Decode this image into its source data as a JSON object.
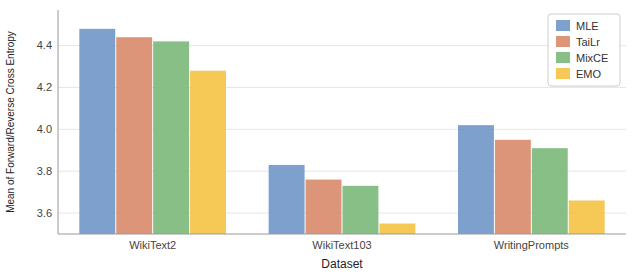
{
  "chart_data": {
    "type": "bar",
    "xlabel": "Dataset",
    "ylabel": "Mean of Forward/Reverse Cross Entropy",
    "categories": [
      "WikiText2",
      "WikiText103",
      "WritingPrompts"
    ],
    "series": [
      {
        "name": "MLE",
        "color": "#7096c8",
        "values": [
          4.48,
          3.83,
          4.02
        ]
      },
      {
        "name": "TaiLr",
        "color": "#d9896a",
        "values": [
          4.44,
          3.76,
          3.95
        ]
      },
      {
        "name": "MixCE",
        "color": "#7ab87a",
        "values": [
          4.42,
          3.73,
          3.91
        ]
      },
      {
        "name": "EMO",
        "color": "#f5c242",
        "values": [
          4.28,
          3.55,
          3.66
        ]
      }
    ],
    "ylim": [
      3.5,
      4.57
    ],
    "yticks": [
      3.6,
      3.8,
      {
        "value": 4.0,
        "label": "4.0"
      },
      4.2,
      4.4
    ],
    "grid": true,
    "legend": "upper right"
  }
}
